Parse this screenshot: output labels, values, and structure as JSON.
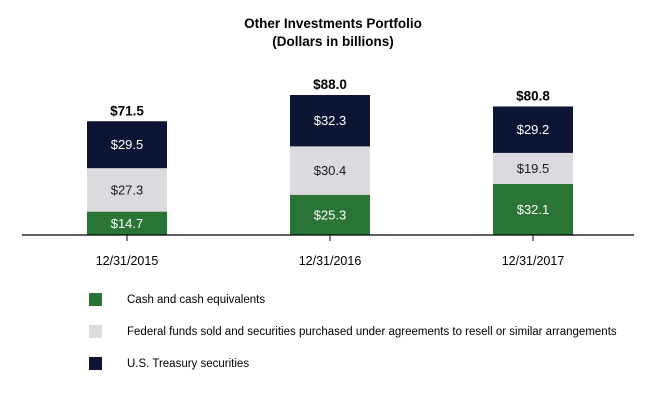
{
  "chart_data": {
    "type": "bar",
    "stacked": true,
    "title": "Other Investments Portfolio",
    "subtitle": "(Dollars in billions)",
    "categories": [
      "12/31/2015",
      "12/31/2016",
      "12/31/2017"
    ],
    "series": [
      {
        "name": "Cash and cash equivalents",
        "color": "#2a7535",
        "label_color": "#ffffff",
        "values": [
          14.7,
          25.3,
          32.1
        ],
        "labels": [
          "$14.7",
          "$25.3",
          "$32.1"
        ]
      },
      {
        "name": "Federal funds sold and securities purchased under agreements to resell or similar arrangements",
        "color": "#dcdadf",
        "label_color": "#1a1a1a",
        "values": [
          27.3,
          30.4,
          19.5
        ],
        "labels": [
          "$27.3",
          "$30.4",
          "$19.5"
        ]
      },
      {
        "name": "U.S. Treasury securities",
        "color": "#0c1534",
        "label_color": "#ffffff",
        "values": [
          29.5,
          32.3,
          29.2
        ],
        "labels": [
          "$29.5",
          "$32.3",
          "$29.2"
        ]
      }
    ],
    "totals": [
      71.5,
      88.0,
      80.8
    ],
    "total_labels": [
      "$71.5",
      "$88.0",
      "$80.8"
    ],
    "ylim": [
      0,
      88.0
    ],
    "grid": false,
    "legend_position": "bottom"
  }
}
